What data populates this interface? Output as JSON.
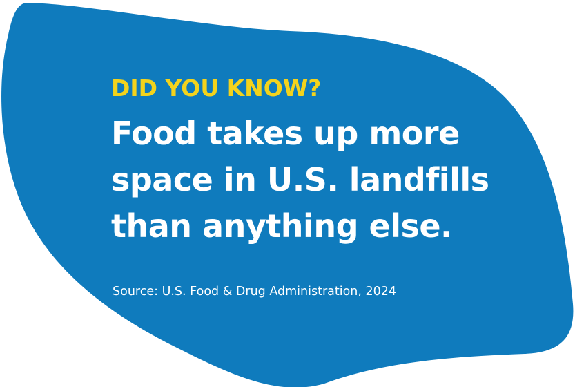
{
  "colors": {
    "background": "#ffffff",
    "blob": "#0f7bbd",
    "kicker": "#f3d31c",
    "text": "#ffffff"
  },
  "kicker": "DID YOU KNOW?",
  "headline": {
    "lines": [
      "Food takes up more",
      "space in U.S. landfills",
      "than anything else."
    ]
  },
  "source": "Source: U.S. Food & Drug Administration, 2024"
}
